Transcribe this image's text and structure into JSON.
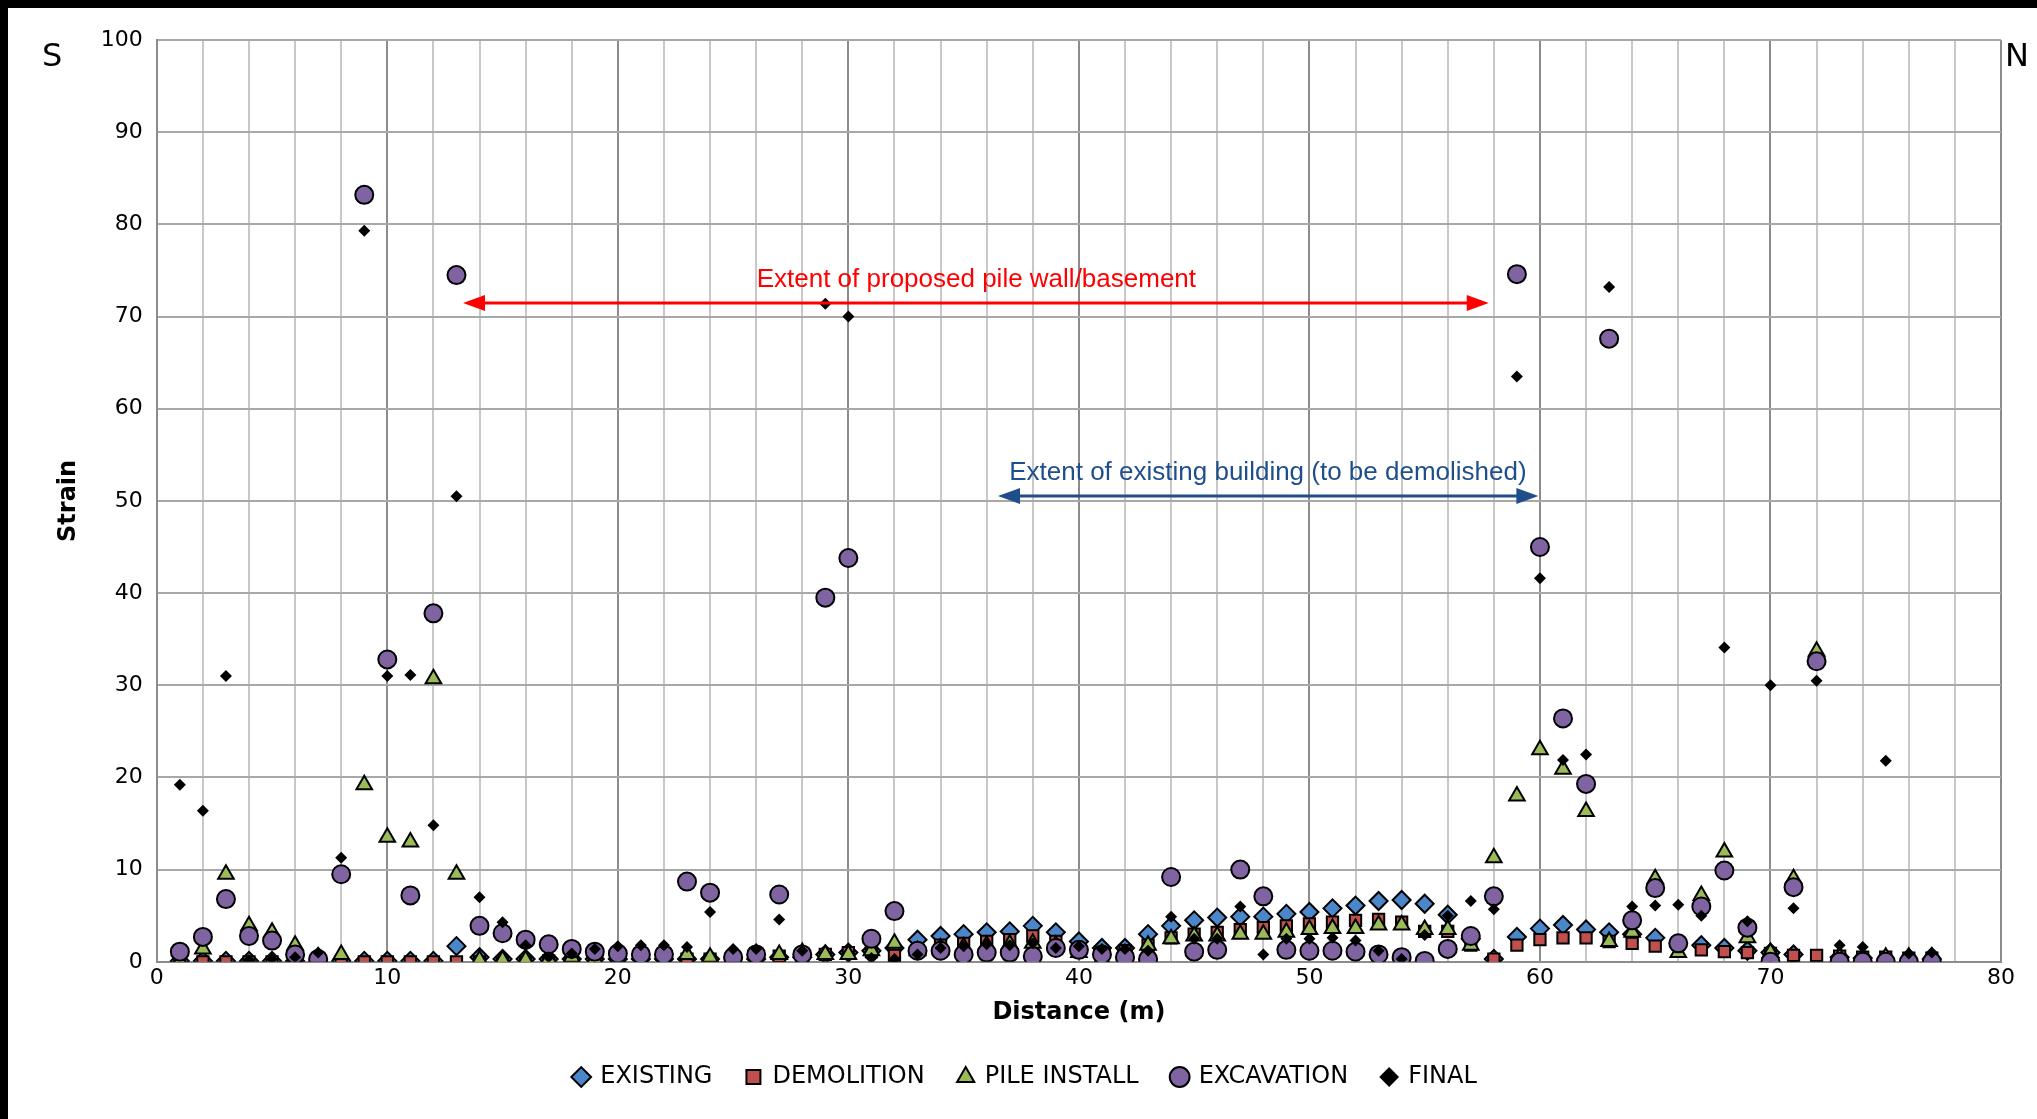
{
  "chart_data": {
    "type": "scatter",
    "xlabel": "Distance (m)",
    "ylabel": "Strain",
    "x": [
      1,
      2,
      3,
      4,
      5,
      6,
      7,
      8,
      9,
      10,
      11,
      12,
      13,
      14,
      15,
      16,
      17,
      18,
      19,
      20,
      21,
      22,
      23,
      24,
      25,
      26,
      27,
      28,
      29,
      30,
      31,
      32,
      33,
      34,
      35,
      36,
      37,
      38,
      39,
      40,
      41,
      42,
      43,
      44,
      45,
      46,
      47,
      48,
      49,
      50,
      51,
      52,
      53,
      54,
      55,
      56,
      57,
      58,
      59,
      60,
      61,
      62,
      63,
      64,
      65,
      66,
      67,
      68,
      69,
      70,
      71,
      72,
      73,
      74,
      75,
      76,
      77
    ],
    "series": [
      {
        "name": "EXISTING",
        "color": "#4a86c8",
        "marker": "diamond",
        "values": [
          0.1,
          0.1,
          0.1,
          0.1,
          0.1,
          0.1,
          null,
          0.1,
          0.1,
          0.1,
          0.1,
          0.1,
          1.7,
          0.5,
          0.3,
          0.3,
          0.3,
          0.3,
          0.3,
          0.3,
          0.3,
          0.3,
          0.3,
          0.3,
          null,
          0.3,
          0.5,
          0.5,
          0.8,
          1,
          1.2,
          1.5,
          2.4,
          2.8,
          3,
          3.2,
          3.3,
          3.9,
          3.2,
          2.2,
          1.5,
          1.5,
          3,
          3.9,
          4.5,
          4.8,
          4.9,
          4.9,
          5.2,
          5.4,
          5.8,
          6.1,
          6.6,
          6.7,
          6.3,
          5.1,
          2.5,
          0.3,
          2.7,
          3.6,
          4,
          3.5,
          3.2,
          3,
          2.6,
          null,
          1.8,
          1.5,
          1.2,
          1,
          0.8,
          null,
          0.5,
          0.4,
          null,
          null,
          0.3
        ]
      },
      {
        "name": "DEMOLITION",
        "color": "#c0504d",
        "marker": "square",
        "values": [
          0,
          0,
          0,
          0,
          0,
          0,
          null,
          0,
          0,
          0,
          0,
          0,
          0,
          0,
          0,
          0,
          0.1,
          0.1,
          0.1,
          null,
          null,
          null,
          0.3,
          0.3,
          null,
          0.5,
          0.6,
          0.7,
          0.8,
          1,
          1.1,
          0.7,
          null,
          1.8,
          2,
          2.2,
          2.4,
          2.8,
          2.2,
          null,
          null,
          1.2,
          1.8,
          2.6,
          3,
          3.2,
          3.5,
          3.7,
          3.9,
          4.1,
          4.3,
          4.5,
          4.6,
          4.3,
          3.3,
          3.3,
          1.8,
          0.3,
          1.8,
          2.4,
          2.6,
          2.6,
          2.2,
          2,
          1.7,
          null,
          1.3,
          1.1,
          1,
          0.9,
          0.7,
          0.7,
          0.6,
          0.5,
          0.5,
          0.4,
          0.4
        ]
      },
      {
        "name": "PILE INSTALL",
        "color": "#9bbb59",
        "marker": "triangle",
        "values": [
          0,
          1.4,
          9.5,
          3.9,
          3.2,
          1.8,
          0.5,
          0.8,
          19.2,
          13.5,
          13,
          30.7,
          9.5,
          0.2,
          0.2,
          0.2,
          0.3,
          0.5,
          0.3,
          0.3,
          null,
          null,
          0.8,
          0.5,
          0.5,
          null,
          0.8,
          1,
          0.8,
          0.8,
          1.2,
          2,
          1.2,
          1.5,
          1.6,
          1.8,
          1.9,
          2,
          1.8,
          1,
          0.3,
          null,
          1.8,
          2.5,
          2.8,
          2.8,
          3,
          3,
          3.2,
          3.5,
          3.6,
          3.6,
          4,
          4,
          3.5,
          3.5,
          1.8,
          11.3,
          18,
          23,
          20.9,
          16.3,
          2.2,
          3.2,
          9,
          1,
          7.2,
          11.9,
          2.6,
          1,
          9,
          33.7,
          0.5,
          0.5,
          0.5,
          0.5,
          0.5
        ]
      },
      {
        "name": "EXCAVATION",
        "color": "#8064a2",
        "marker": "circle",
        "values": [
          1.1,
          2.7,
          6.8,
          2.8,
          2.3,
          0.8,
          0.3,
          9.5,
          83.2,
          32.8,
          7.2,
          37.8,
          74.5,
          3.9,
          3.1,
          2.4,
          1.9,
          1.4,
          1.1,
          0.9,
          0.8,
          0.8,
          8.7,
          7.5,
          0.5,
          0.8,
          7.3,
          0.8,
          39.5,
          43.8,
          2.5,
          5.5,
          1.2,
          1.2,
          0.8,
          1,
          1,
          0.6,
          1.5,
          1.3,
          0.8,
          0.5,
          0.3,
          9.2,
          1.1,
          1.3,
          10,
          7.1,
          1.3,
          1.2,
          1.2,
          1.1,
          0.8,
          0.5,
          0.1,
          1.4,
          2.8,
          7.1,
          74.6,
          45,
          26.4,
          19.3,
          67.6,
          4.5,
          8,
          2,
          6,
          9.9,
          3.7,
          0,
          8.1,
          32.6,
          0,
          0,
          0,
          0,
          0
        ]
      },
      {
        "name": "FINAL",
        "color": "#000000",
        "marker": "diamond",
        "values": [
          19.2,
          16.4,
          31,
          0.2,
          0.3,
          0.5,
          1,
          11.3,
          79.3,
          31,
          31.1,
          14.8,
          50.5,
          7,
          4.3,
          1.8,
          0.5,
          0.9,
          1.4,
          1.7,
          1.8,
          1.8,
          1.6,
          5.4,
          1.4,
          1.4,
          4.6,
          1.2,
          71.4,
          70,
          0.4,
          0.3,
          0.8,
          1.5,
          1.7,
          1.9,
          1.8,
          2,
          1.5,
          1.7,
          1.4,
          1.4,
          1.2,
          4.9,
          2.5,
          2.5,
          6,
          0.8,
          2.5,
          2.5,
          2.6,
          2.3,
          1.2,
          0.3,
          2.9,
          5,
          6.6,
          5.7,
          63.5,
          41.6,
          21.9,
          22.5,
          73.2,
          6,
          6.1,
          6.2,
          5,
          34.1,
          4.4,
          30,
          5.8,
          30.5,
          1.8,
          1.6,
          21.8,
          0.9,
          1
        ]
      }
    ],
    "xlim": [
      0,
      80
    ],
    "xticks": [
      0,
      {
        "value": 2,
        "label": null
      },
      {
        "value": 4,
        "label": null
      },
      {
        "value": 6,
        "label": null
      },
      {
        "value": 8,
        "label": null
      },
      10,
      {
        "value": 12,
        "label": null
      },
      {
        "value": 14,
        "label": null
      },
      {
        "value": 16,
        "label": null
      },
      {
        "value": 18,
        "label": null
      },
      20,
      {
        "value": 22,
        "label": null
      },
      {
        "value": 24,
        "label": null
      },
      {
        "value": 26,
        "label": null
      },
      {
        "value": 28,
        "label": null
      },
      30,
      {
        "value": 32,
        "label": null
      },
      {
        "value": 34,
        "label": null
      },
      {
        "value": 36,
        "label": null
      },
      {
        "value": 38,
        "label": null
      },
      40,
      {
        "value": 42,
        "label": null
      },
      {
        "value": 44,
        "label": null
      },
      {
        "value": 46,
        "label": null
      },
      {
        "value": 48,
        "label": null
      },
      50,
      {
        "value": 52,
        "label": null
      },
      {
        "value": 54,
        "label": null
      },
      {
        "value": 56,
        "label": null
      },
      {
        "value": 58,
        "label": null
      },
      60,
      {
        "value": 62,
        "label": null
      },
      {
        "value": 64,
        "label": null
      },
      {
        "value": 66,
        "label": null
      },
      {
        "value": 68,
        "label": null
      },
      70,
      {
        "value": 72,
        "label": null
      },
      {
        "value": 74,
        "label": null
      },
      {
        "value": 76,
        "label": null
      },
      {
        "value": 78,
        "label": null
      },
      80
    ],
    "ylim": [
      0,
      100
    ],
    "yticks": [
      0,
      10,
      20,
      30,
      40,
      50,
      60,
      70,
      80,
      90,
      100
    ],
    "grid": true,
    "legend": "bottom",
    "annotations": [
      "S",
      "N",
      "Extent of proposed pile wall/basement",
      "Extent of existing building (to be demolished)"
    ]
  }
}
